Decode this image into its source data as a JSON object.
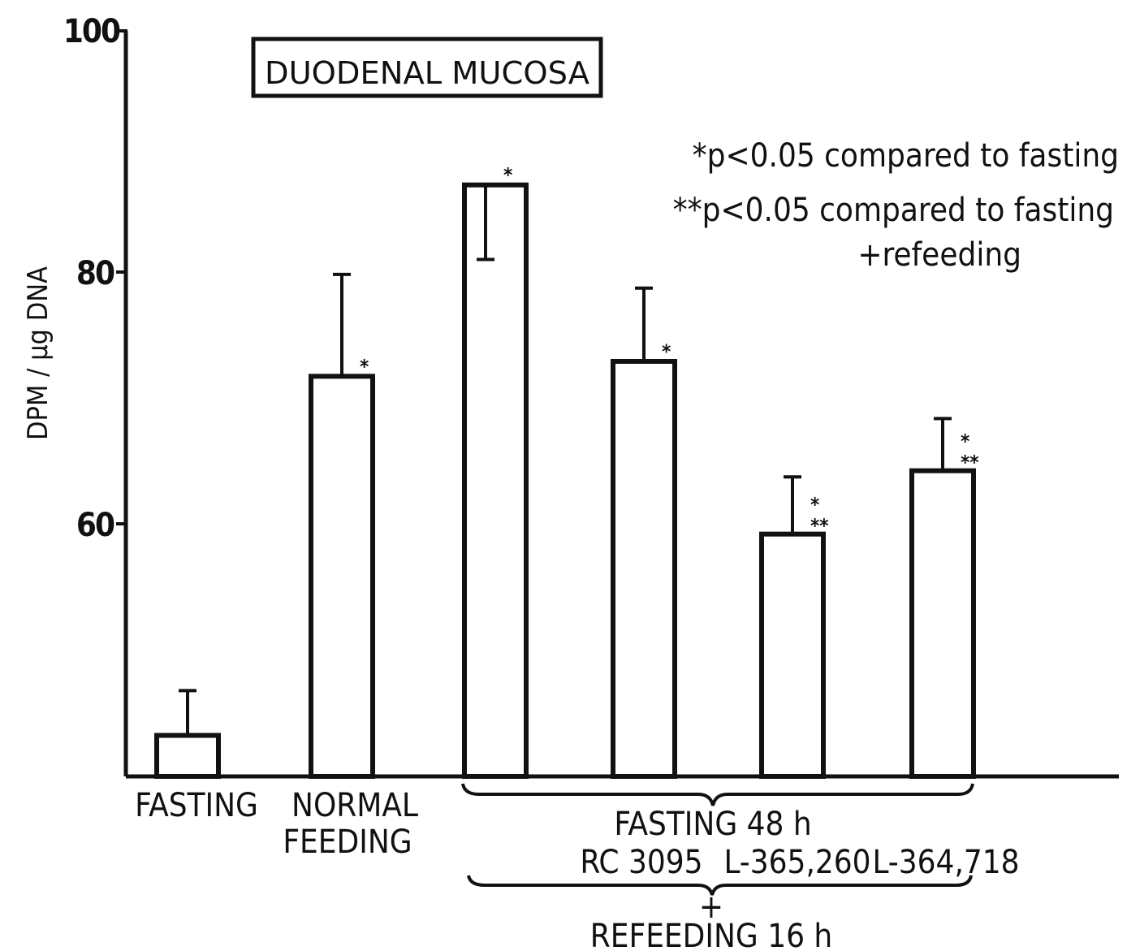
{
  "chart_data": {
    "type": "bar",
    "title": "DUODENAL MUCOSA",
    "ylabel": "DPM / µg DNA",
    "ylim": [
      40,
      100
    ],
    "yticks": [
      "60",
      "80",
      "100"
    ],
    "bars": [
      {
        "label": "FASTING",
        "value": 43.3,
        "error": 3.6,
        "sig": ""
      },
      {
        "label": "NORMAL FEEDING",
        "value": 72.2,
        "error": 8.2,
        "sig": "*"
      },
      {
        "label": "",
        "value": 87.6,
        "error": 6.0,
        "sig": "*"
      },
      {
        "label": "",
        "value": 73.4,
        "error": 5.9,
        "sig": "*"
      },
      {
        "label": "",
        "value": 59.5,
        "error": 4.6,
        "sig": "* **"
      },
      {
        "label": "",
        "value": 64.6,
        "error": 4.2,
        "sig": "* **"
      }
    ],
    "group_labels": {
      "line1": "FASTING 48 h",
      "drugs": [
        "RC 3095",
        "L-365,260",
        "L-364,718"
      ],
      "plus": "+",
      "line2": "REFEEDING 16 h"
    },
    "legend": [
      "*p<0.05 compared to fasting",
      "**p<0.05 compared to fasting",
      "+refeeding"
    ],
    "grid": false
  }
}
